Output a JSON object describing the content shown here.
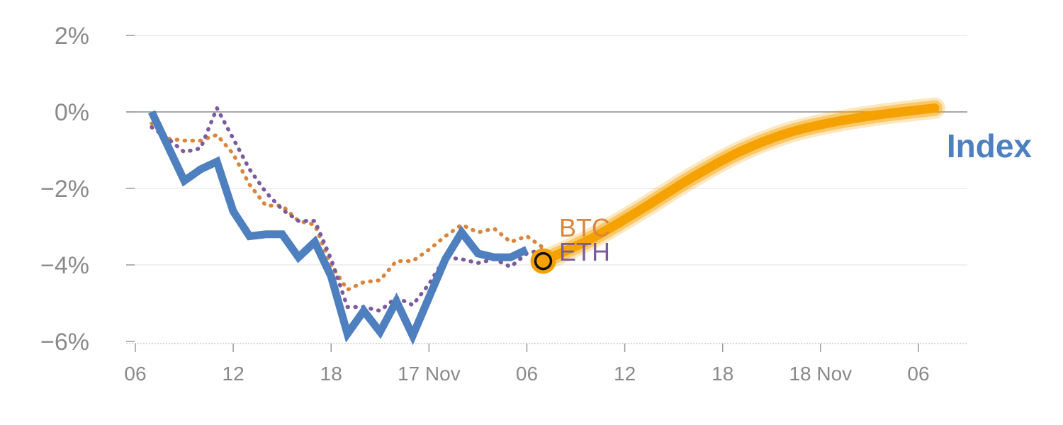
{
  "chart_data": {
    "type": "line",
    "title": "",
    "xlabel": "",
    "ylabel": "",
    "ylim": [
      -6,
      2
    ],
    "yticks": [
      {
        "value": 2,
        "label": "2%"
      },
      {
        "value": 0,
        "label": "0%"
      },
      {
        "value": -2,
        "label": "−2%"
      },
      {
        "value": -4,
        "label": "−4%"
      },
      {
        "value": -6,
        "label": "−6%"
      }
    ],
    "xlim_hours": [
      0,
      49
    ],
    "xticks": [
      {
        "hour": 0,
        "label": "06"
      },
      {
        "hour": 6,
        "label": "12"
      },
      {
        "hour": 12,
        "label": "18"
      },
      {
        "hour": 18,
        "label": "17 Nov"
      },
      {
        "hour": 24,
        "label": "06"
      },
      {
        "hour": 30,
        "label": "12"
      },
      {
        "hour": 36,
        "label": "18"
      },
      {
        "hour": 42,
        "label": "18 Nov"
      },
      {
        "hour": 48,
        "label": "06"
      }
    ],
    "series": [
      {
        "name": "Index",
        "label": "Index",
        "color": "#4e7fbf",
        "style": "solid",
        "x": [
          1,
          2,
          3,
          4,
          5,
          6,
          7,
          8,
          9,
          10,
          11,
          12,
          13,
          14,
          15,
          16,
          17,
          18,
          19,
          20,
          21,
          22,
          23,
          24
        ],
        "y": [
          0,
          -0.9,
          -1.8,
          -1.5,
          -1.3,
          -2.6,
          -3.25,
          -3.2,
          -3.2,
          -3.8,
          -3.4,
          -4.3,
          -5.8,
          -5.2,
          -5.75,
          -4.95,
          -5.85,
          -4.85,
          -3.85,
          -3.15,
          -3.7,
          -3.8,
          -3.8,
          -3.6
        ]
      },
      {
        "name": "BTC",
        "label": "BTC",
        "color": "#d9853b",
        "style": "dotted",
        "x": [
          1,
          2,
          3,
          4,
          5,
          6,
          7,
          8,
          9,
          10,
          11,
          12,
          13,
          14,
          15,
          16,
          17,
          18,
          19,
          20,
          21,
          22,
          23,
          24,
          25
        ],
        "y": [
          -0.3,
          -0.7,
          -0.75,
          -0.75,
          -0.6,
          -1.1,
          -1.9,
          -2.45,
          -2.45,
          -2.85,
          -2.95,
          -4.0,
          -4.65,
          -4.45,
          -4.4,
          -3.9,
          -3.9,
          -3.6,
          -3.25,
          -2.95,
          -3.15,
          -3.05,
          -3.4,
          -3.25,
          -3.55
        ]
      },
      {
        "name": "ETH",
        "label": "ETH",
        "color": "#7b5a9e",
        "style": "dotted",
        "x": [
          1,
          2,
          3,
          4,
          5,
          6,
          7,
          8,
          9,
          10,
          11,
          12,
          13,
          14,
          15,
          16,
          17,
          18,
          19,
          20,
          21,
          22,
          23,
          24,
          25
        ],
        "y": [
          -0.4,
          -0.7,
          -1.05,
          -0.95,
          0.1,
          -0.7,
          -1.5,
          -2.1,
          -2.55,
          -2.85,
          -2.85,
          -3.85,
          -5.1,
          -5.1,
          -5.2,
          -4.85,
          -5.05,
          -4.5,
          -3.8,
          -3.85,
          -3.95,
          -3.85,
          -4.05,
          -3.7,
          -3.6
        ]
      },
      {
        "name": "Forecast",
        "label": "",
        "color": "#f5a100",
        "style": "band",
        "x": [
          25,
          28,
          31,
          34,
          37,
          40,
          43,
          46,
          49
        ],
        "y": [
          -3.9,
          -3.3,
          -2.55,
          -1.75,
          -1.05,
          -0.55,
          -0.25,
          -0.05,
          0.1
        ]
      }
    ],
    "marker": {
      "x": 25,
      "y": -3.9,
      "color": "#f5a100"
    },
    "reference_line": {
      "y": 0
    }
  }
}
